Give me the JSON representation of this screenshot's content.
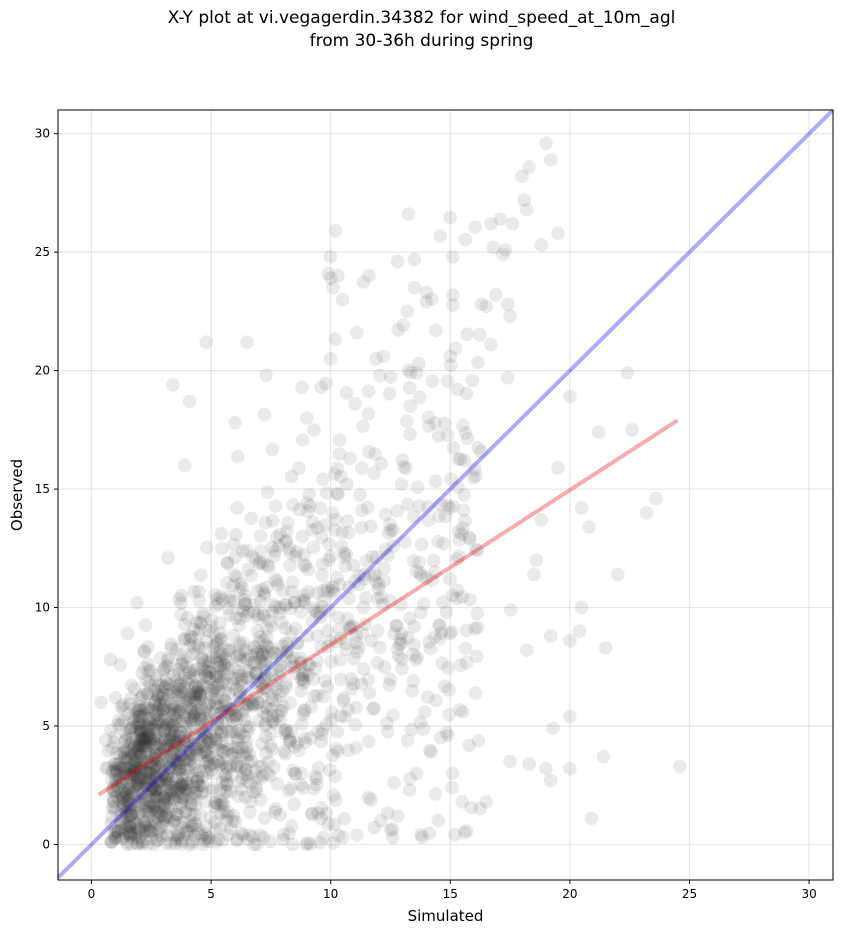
{
  "chart_data": {
    "type": "scatter",
    "title": "X-Y plot at vi.vegagerdin.34382 for wind_speed_at_10m_agl",
    "subtitle": "from 30-36h during spring",
    "xlabel": "Simulated",
    "ylabel": "Observed",
    "xlim": [
      -1.4,
      31.0
    ],
    "ylim": [
      -1.5,
      31.0
    ],
    "xticks": [
      0,
      5,
      10,
      15,
      20,
      25,
      30
    ],
    "yticks": [
      0,
      5,
      10,
      15,
      20,
      25,
      30
    ],
    "grid": true,
    "scatter_color": "#333333",
    "scatter_opacity": 0.1,
    "outlier_points": [
      [
        24.6,
        3.3
      ],
      [
        20.9,
        1.1
      ],
      [
        21.4,
        3.7
      ],
      [
        20.0,
        3.2
      ],
      [
        19.0,
        3.2
      ],
      [
        19.2,
        2.7
      ],
      [
        18.3,
        3.4
      ],
      [
        17.5,
        3.5
      ],
      [
        16.5,
        1.8
      ],
      [
        15.6,
        0.5
      ],
      [
        15.5,
        1.8
      ],
      [
        14.5,
        1.0
      ],
      [
        15.1,
        3.0
      ],
      [
        14.9,
        4.6
      ],
      [
        23.2,
        14.0
      ],
      [
        23.6,
        14.6
      ],
      [
        22.0,
        11.4
      ],
      [
        21.5,
        8.3
      ],
      [
        20.8,
        13.4
      ],
      [
        20.5,
        14.2
      ],
      [
        20.5,
        10.0
      ],
      [
        20.4,
        9.0
      ],
      [
        20.0,
        8.6
      ],
      [
        19.5,
        15.9
      ],
      [
        18.8,
        13.7
      ],
      [
        18.6,
        12.0
      ],
      [
        18.5,
        11.4
      ],
      [
        18.2,
        8.2
      ],
      [
        19.2,
        8.8
      ],
      [
        20.0,
        5.4
      ],
      [
        19.3,
        4.9
      ],
      [
        22.4,
        19.9
      ],
      [
        22.6,
        17.5
      ],
      [
        21.2,
        17.4
      ],
      [
        20.0,
        18.9
      ],
      [
        19.0,
        29.6
      ],
      [
        19.2,
        28.9
      ],
      [
        18.3,
        28.6
      ],
      [
        18.0,
        28.2
      ],
      [
        18.1,
        27.2
      ],
      [
        18.2,
        26.8
      ],
      [
        17.6,
        26.2
      ],
      [
        19.5,
        25.8
      ],
      [
        18.8,
        25.3
      ],
      [
        17.1,
        26.4
      ],
      [
        16.7,
        26.2
      ],
      [
        16.8,
        25.2
      ],
      [
        17.2,
        24.9
      ],
      [
        17.3,
        25.1
      ],
      [
        16.3,
        22.8
      ],
      [
        16.5,
        22.7
      ],
      [
        16.9,
        23.2
      ],
      [
        17.5,
        22.3
      ],
      [
        17.4,
        22.8
      ],
      [
        17.4,
        19.7
      ],
      [
        16.7,
        21.1
      ],
      [
        10.2,
        25.9
      ],
      [
        10.3,
        24.0
      ],
      [
        10.0,
        23.9
      ],
      [
        10.1,
        23.5
      ],
      [
        9.9,
        24.1
      ],
      [
        11.6,
        24.0
      ],
      [
        10.5,
        23.0
      ],
      [
        12.8,
        24.6
      ],
      [
        13.5,
        24.7
      ],
      [
        13.5,
        23.5
      ],
      [
        14.0,
        23.3
      ],
      [
        15.1,
        24.8
      ],
      [
        13.2,
        22.5
      ],
      [
        14.0,
        22.9
      ],
      [
        14.4,
        21.7
      ],
      [
        15.0,
        20.6
      ],
      [
        4.8,
        21.2
      ],
      [
        6.5,
        21.2
      ],
      [
        3.4,
        19.4
      ],
      [
        4.1,
        18.7
      ],
      [
        3.9,
        16.0
      ],
      [
        7.3,
        19.8
      ],
      [
        8.8,
        19.3
      ],
      [
        9.6,
        19.3
      ],
      [
        10.0,
        20.5
      ],
      [
        11.1,
        21.6
      ],
      [
        11.9,
        20.5
      ],
      [
        12.2,
        20.6
      ],
      [
        9.0,
        18.0
      ],
      [
        6.0,
        17.8
      ],
      [
        1.5,
        8.9
      ],
      [
        1.9,
        10.2
      ],
      [
        0.8,
        7.8
      ],
      [
        3.2,
        12.1
      ],
      [
        2.0,
        3.2
      ],
      [
        0.6,
        4.4
      ],
      [
        0.4,
        6.0
      ],
      [
        0.6,
        3.2
      ],
      [
        0.9,
        1.6
      ],
      [
        1.5,
        0.0
      ],
      [
        2.6,
        0.0
      ],
      [
        4.1,
        0.0
      ],
      [
        5.2,
        0.1
      ],
      [
        6.8,
        0.0
      ],
      [
        8.4,
        0.0
      ],
      [
        9.7,
        0.3
      ],
      [
        11.1,
        0.4
      ],
      [
        12.1,
        1.0
      ],
      [
        12.8,
        1.2
      ],
      [
        13.3,
        2.3
      ],
      [
        13.6,
        3.0
      ],
      [
        14.2,
        3.9
      ],
      [
        14.6,
        4.5
      ],
      [
        9.6,
        1.1
      ],
      [
        7.7,
        1.5
      ],
      [
        5.7,
        1.2
      ],
      [
        3.6,
        0.9
      ],
      [
        2.3,
        1.6
      ]
    ],
    "series": [
      {
        "name": "",
        "type": "line",
        "role": "1:1 reference",
        "color": "#0000ee",
        "x": [
          -1.4,
          31.0
        ],
        "y": [
          -1.4,
          31.0
        ]
      },
      {
        "name": "",
        "type": "line",
        "role": "linear fit",
        "color": "#ee0000",
        "x": [
          0.3,
          24.5
        ],
        "y": [
          2.1,
          17.9
        ]
      }
    ]
  }
}
